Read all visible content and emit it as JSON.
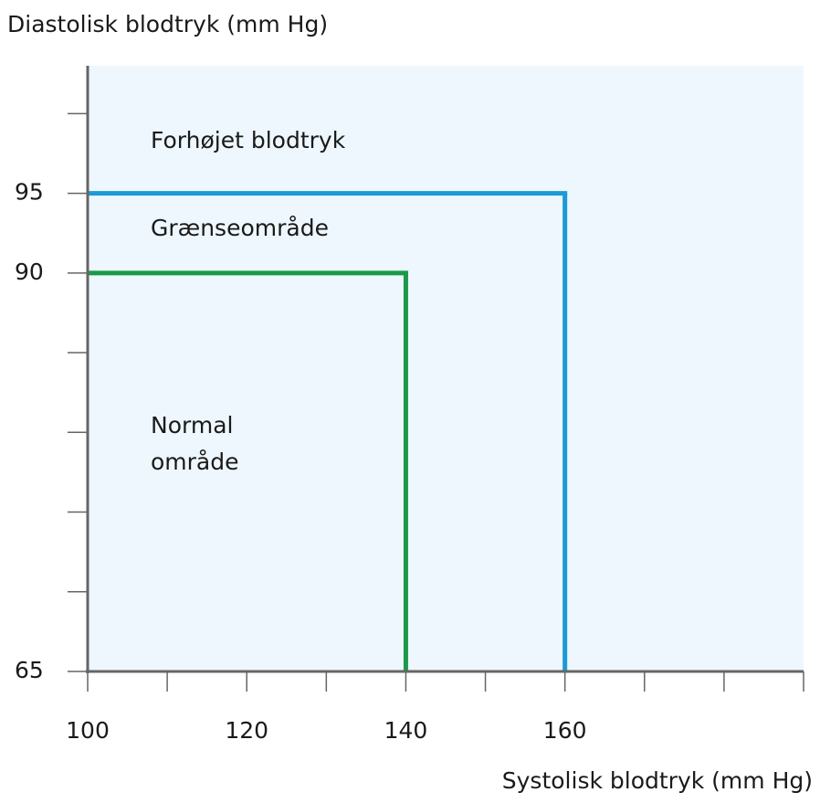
{
  "chart_data": {
    "type": "threshold",
    "y_axis_label": "Diastolisk blodtryk (mm Hg)",
    "x_axis_label": "Systolisk blodtryk (mm Hg)",
    "xlim": [
      100,
      190
    ],
    "ylim": [
      65,
      103
    ],
    "xticks": [
      100,
      120,
      140,
      160
    ],
    "xminorticks": [
      110,
      130,
      150,
      170,
      180,
      190
    ],
    "yticks": [
      65,
      90,
      95
    ],
    "yminorticks": [
      70,
      75,
      80,
      85,
      100
    ],
    "background": "#eef7fd",
    "boundaries": [
      {
        "color": "#1a9a48",
        "x": 140,
        "y": 90
      },
      {
        "color": "#1b9ad6",
        "x": 160,
        "y": 95
      }
    ],
    "region_labels": [
      [
        "Forhøjet blodtryk"
      ],
      [
        "Grænseområde"
      ],
      [
        "Normal",
        "område"
      ]
    ]
  }
}
